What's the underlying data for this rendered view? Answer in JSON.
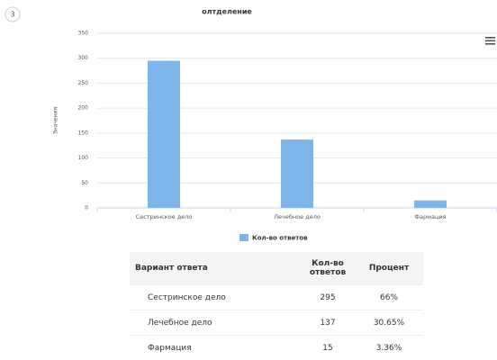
{
  "question_number": "3",
  "chart_data": {
    "type": "bar",
    "title": "олтделение",
    "ylabel": "Значения",
    "categories": [
      "Сестринское дело",
      "Лечебное дело",
      "Фармация"
    ],
    "series": [
      {
        "name": "Кол-во ответов",
        "color": "#7cb5ec",
        "values": [
          295,
          137,
          15
        ]
      }
    ],
    "ylim": [
      0,
      350
    ],
    "yticks": [
      0,
      50,
      100,
      150,
      200,
      250,
      300,
      350
    ],
    "grid": true
  },
  "table": {
    "header": [
      "Вариант ответа",
      "Кол-во ответов",
      "Процент"
    ],
    "rows": [
      [
        "Сестринское дело",
        "295",
        "66%"
      ],
      [
        "Лечебное дело",
        "137",
        "30.65%"
      ],
      [
        "Фармация",
        "15",
        "3.36%"
      ]
    ]
  }
}
